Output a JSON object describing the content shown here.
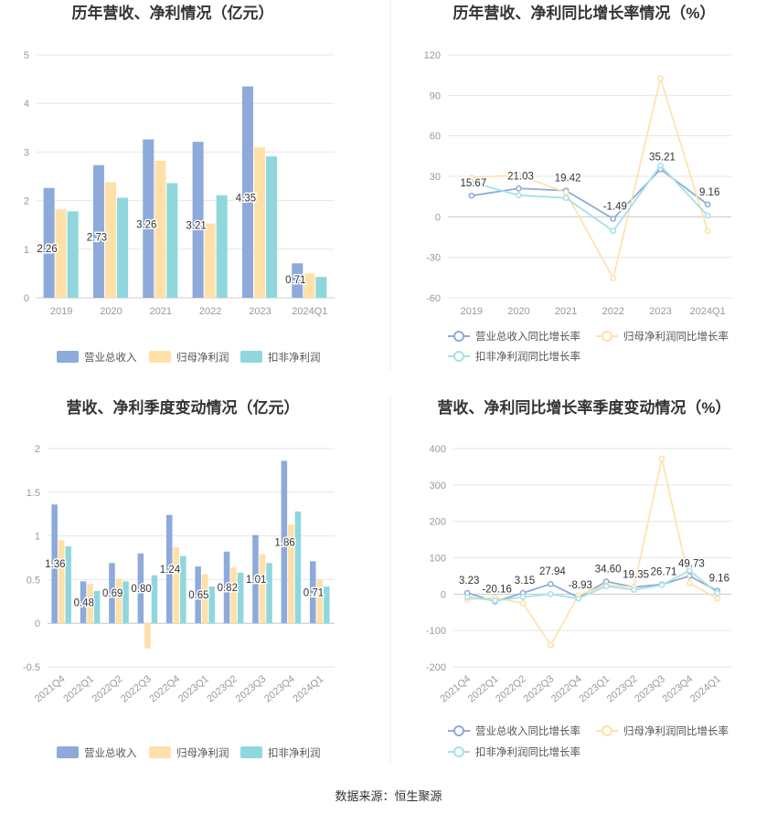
{
  "source": "数据来源：恒生聚源",
  "colors": {
    "revenue": "#8eaadb",
    "net_profit": "#ffe0a8",
    "deducted_profit": "#8fd7dc",
    "grid": "#e6e6e6",
    "axis": "#cccccc"
  },
  "chart_data": [
    {
      "id": "annual-amounts",
      "type": "bar",
      "title": "历年营收、净利情况（亿元）",
      "categories": [
        "2019",
        "2020",
        "2021",
        "2022",
        "2023",
        "2024Q1"
      ],
      "ylim": [
        0,
        5
      ],
      "yticks": [
        0,
        1,
        2,
        3,
        4,
        5
      ],
      "series": [
        {
          "name": "营业总收入",
          "values": [
            2.26,
            2.73,
            3.26,
            3.21,
            4.35,
            0.71
          ],
          "labels": [
            "2.26",
            "2.73",
            "3.26",
            "3.21",
            "4.35",
            "0.71"
          ]
        },
        {
          "name": "归母净利润",
          "values": [
            1.82,
            2.38,
            2.82,
            1.53,
            3.1,
            0.5
          ]
        },
        {
          "name": "扣非净利润",
          "values": [
            1.78,
            2.06,
            2.36,
            2.11,
            2.91,
            0.43
          ]
        }
      ],
      "legend_position": "bottom",
      "grid": true
    },
    {
      "id": "annual-growth",
      "type": "line",
      "title": "历年营收、净利同比增长率情况（%）",
      "categories": [
        "2019",
        "2020",
        "2021",
        "2022",
        "2023",
        "2024Q1"
      ],
      "ylim": [
        -60,
        120
      ],
      "yticks": [
        -60,
        -30,
        0,
        30,
        60,
        90,
        120
      ],
      "series": [
        {
          "name": "营业总收入同比增长率",
          "values": [
            15.67,
            21.03,
            19.42,
            -1.49,
            35.21,
            9.16
          ],
          "labels": [
            "15.67",
            "21.03",
            "19.42",
            "-1.49",
            "35.21",
            "9.16"
          ]
        },
        {
          "name": "归母净利润同比增长率",
          "values": [
            29.0,
            31.0,
            18.0,
            -45.5,
            102.5,
            -10.5
          ]
        },
        {
          "name": "扣非净利润同比增长率",
          "values": [
            25.5,
            16.0,
            14.0,
            -10.5,
            38.0,
            1.0
          ]
        }
      ],
      "legend_position": "bottom",
      "grid": true
    },
    {
      "id": "quarterly-amounts",
      "type": "bar",
      "title": "营收、净利季度变动情况（亿元）",
      "categories": [
        "2021Q4",
        "2022Q1",
        "2022Q2",
        "2022Q3",
        "2022Q4",
        "2023Q1",
        "2023Q2",
        "2023Q3",
        "2023Q4",
        "2024Q1"
      ],
      "ylim": [
        -0.5,
        2
      ],
      "yticks": [
        -0.5,
        0,
        0.5,
        1,
        1.5,
        2
      ],
      "series": [
        {
          "name": "营业总收入",
          "values": [
            1.36,
            0.48,
            0.69,
            0.8,
            1.24,
            0.65,
            0.82,
            1.01,
            1.86,
            0.71
          ],
          "labels": [
            "1.36",
            "0.48",
            "0.69",
            "0.80",
            "1.24",
            "0.65",
            "0.82",
            "1.01",
            "1.86",
            "0.71"
          ]
        },
        {
          "name": "归母净利润",
          "values": [
            0.95,
            0.45,
            0.51,
            -0.29,
            0.87,
            0.56,
            0.64,
            0.79,
            1.13,
            0.5
          ]
        },
        {
          "name": "扣非净利润",
          "values": [
            0.88,
            0.37,
            0.48,
            0.55,
            0.77,
            0.42,
            0.58,
            0.69,
            1.28,
            0.42
          ]
        }
      ],
      "legend_position": "bottom",
      "grid": true
    },
    {
      "id": "quarterly-growth",
      "type": "line",
      "title": "营收、净利同比增长率季度变动情况（%）",
      "categories": [
        "2021Q4",
        "2022Q1",
        "2022Q2",
        "2022Q3",
        "2022Q4",
        "2023Q1",
        "2023Q2",
        "2023Q3",
        "2023Q4",
        "2024Q1"
      ],
      "ylim": [
        -200,
        400
      ],
      "yticks": [
        -200,
        -100,
        0,
        100,
        200,
        300,
        400
      ],
      "series": [
        {
          "name": "营业总收入同比增长率",
          "values": [
            3.23,
            -20.16,
            3.15,
            27.94,
            -8.93,
            34.6,
            19.35,
            26.71,
            49.73,
            9.16
          ],
          "labels": [
            "3.23",
            "-20.16",
            "3.15",
            "27.94",
            "-8.93",
            "34.60",
            "19.35",
            "26.71",
            "49.73",
            "9.16"
          ]
        },
        {
          "name": "归母净利润同比增长率",
          "values": [
            -15,
            -10,
            -25,
            -140,
            -3,
            25,
            20,
            372,
            30,
            -12
          ]
        },
        {
          "name": "扣非净利润同比增长率",
          "values": [
            -8,
            -18,
            -8,
            0,
            -12,
            22,
            12,
            25,
            65,
            3
          ]
        }
      ],
      "legend_position": "bottom",
      "grid": true
    }
  ]
}
